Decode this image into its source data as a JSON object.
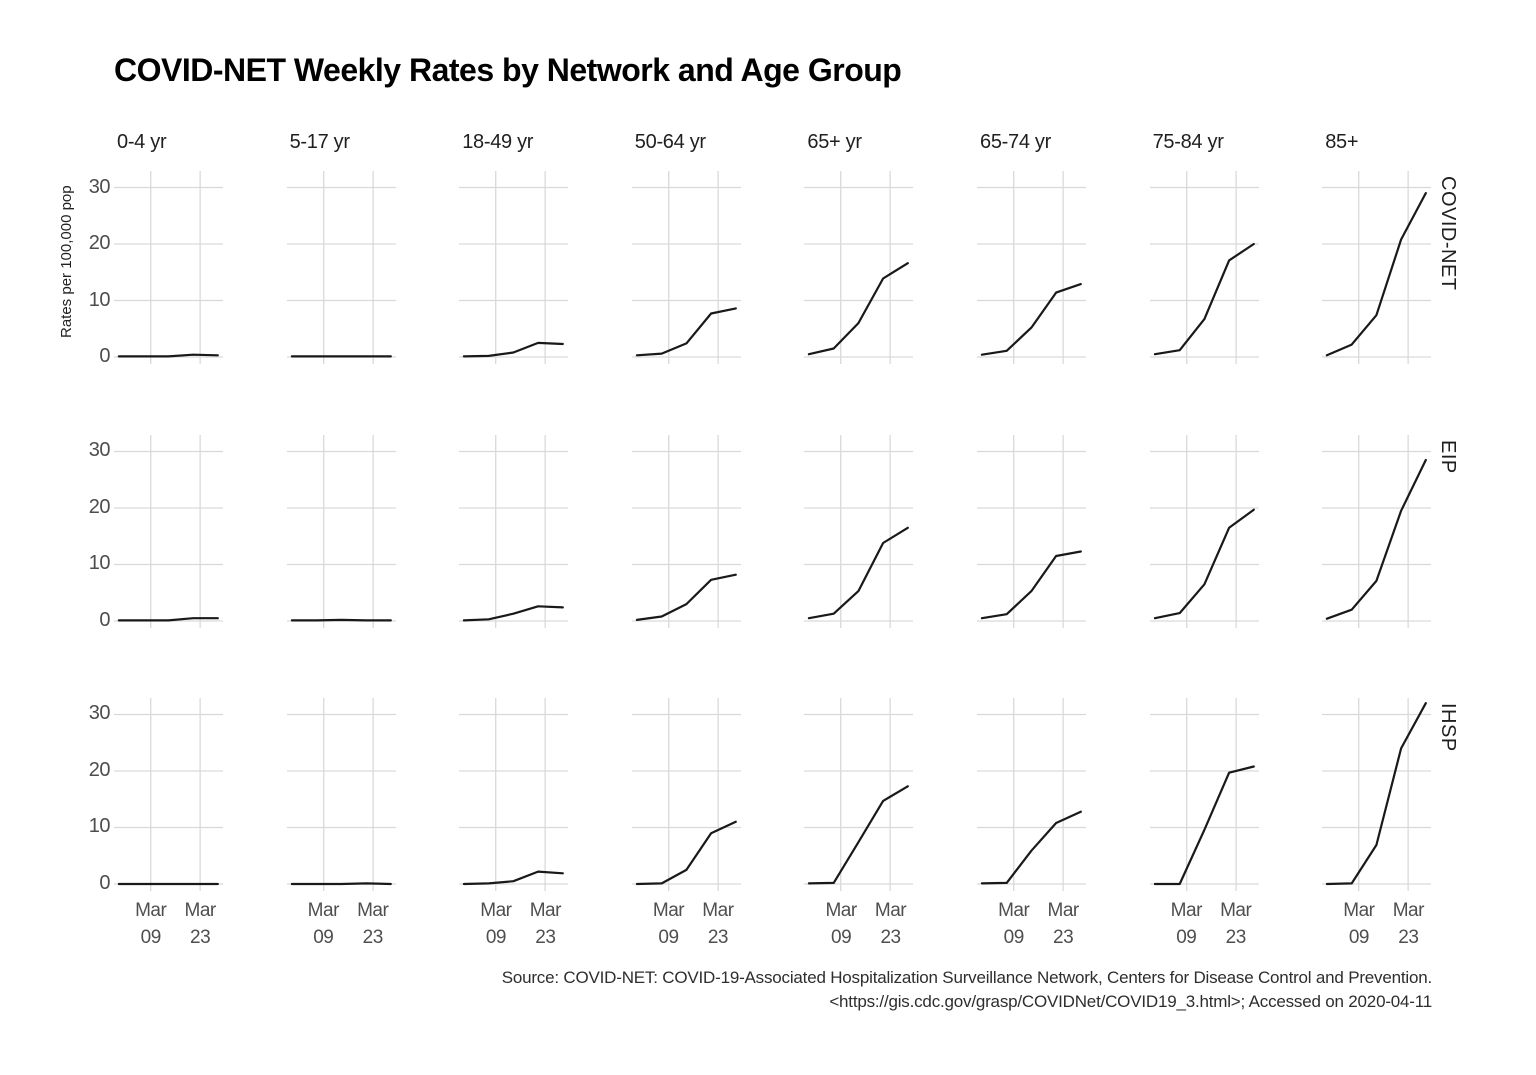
{
  "title": "COVID-NET Weekly Rates by Network and Age Group",
  "source": {
    "line1": "Source: COVID-NET: COVID-19-Associated Hospitalization Surveillance Network, Centers for Disease Control and Prevention.",
    "line2": "<https://gis.cdc.gov/grasp/COVIDNet/COVID19_3.html>; Accessed on 2020-04-11"
  },
  "colors": {
    "background": "#ffffff",
    "line": "#191919",
    "grid": "#d9d9d9",
    "axis_text": "#4d4d4d",
    "strip_text": "#1f1f1f"
  },
  "chart_data": {
    "type": "line",
    "title": "COVID-NET Weekly Rates by Network and Age Group",
    "ylabel": "Rates per 100,000 pop",
    "grid": "on",
    "legend": "none",
    "facet_columns": [
      "0-4 yr",
      "5-17 yr",
      "18-49 yr",
      "50-64 yr",
      "65+ yr",
      "65-74 yr",
      "75-84 yr",
      "85+"
    ],
    "facet_rows": [
      "COVID-NET",
      "EIP",
      "IHSP"
    ],
    "x_day_offsets": [
      0,
      7,
      14,
      21,
      28
    ],
    "x_tick_day_offsets": [
      9,
      23
    ],
    "x_tick_labels": [
      [
        "Mar",
        "09"
      ],
      [
        "Mar",
        "23"
      ]
    ],
    "y_ticks": [
      0,
      10,
      20,
      30
    ],
    "ylim": [
      0,
      33
    ],
    "series": [
      {
        "network": "COVID-NET",
        "values_by_age_group": [
          [
            0.1,
            0.1,
            0.1,
            0.4,
            0.3
          ],
          [
            0.1,
            0.1,
            0.1,
            0.1,
            0.1
          ],
          [
            0.1,
            0.2,
            0.8,
            2.5,
            2.3
          ],
          [
            0.3,
            0.6,
            2.4,
            7.7,
            8.6
          ],
          [
            0.5,
            1.5,
            6.0,
            13.9,
            16.6
          ],
          [
            0.4,
            1.1,
            5.2,
            11.4,
            12.9
          ],
          [
            0.5,
            1.2,
            6.7,
            17.1,
            20.0
          ],
          [
            0.3,
            2.2,
            7.4,
            20.8,
            29.0
          ]
        ]
      },
      {
        "network": "EIP",
        "values_by_age_group": [
          [
            0.1,
            0.1,
            0.1,
            0.5,
            0.5
          ],
          [
            0.1,
            0.1,
            0.2,
            0.1,
            0.1
          ],
          [
            0.1,
            0.3,
            1.3,
            2.6,
            2.4
          ],
          [
            0.2,
            0.8,
            3.0,
            7.3,
            8.2
          ],
          [
            0.5,
            1.3,
            5.3,
            13.8,
            16.5
          ],
          [
            0.5,
            1.2,
            5.3,
            11.5,
            12.3
          ],
          [
            0.5,
            1.4,
            6.5,
            16.5,
            19.7
          ],
          [
            0.4,
            2.0,
            7.1,
            19.5,
            28.5
          ]
        ]
      },
      {
        "network": "IHSP",
        "values_by_age_group": [
          [
            0.0,
            0.0,
            0.0,
            0.0,
            0.0
          ],
          [
            0.0,
            0.0,
            0.0,
            0.1,
            0.0
          ],
          [
            0.0,
            0.1,
            0.5,
            2.2,
            1.9
          ],
          [
            0.0,
            0.1,
            2.5,
            9.0,
            11.0
          ],
          [
            0.1,
            0.2,
            7.4,
            14.7,
            17.3
          ],
          [
            0.1,
            0.2,
            5.9,
            10.8,
            12.8
          ],
          [
            0.0,
            0.0,
            9.6,
            19.7,
            20.8
          ],
          [
            0.0,
            0.1,
            6.9,
            24.0,
            32.0
          ]
        ]
      }
    ]
  }
}
